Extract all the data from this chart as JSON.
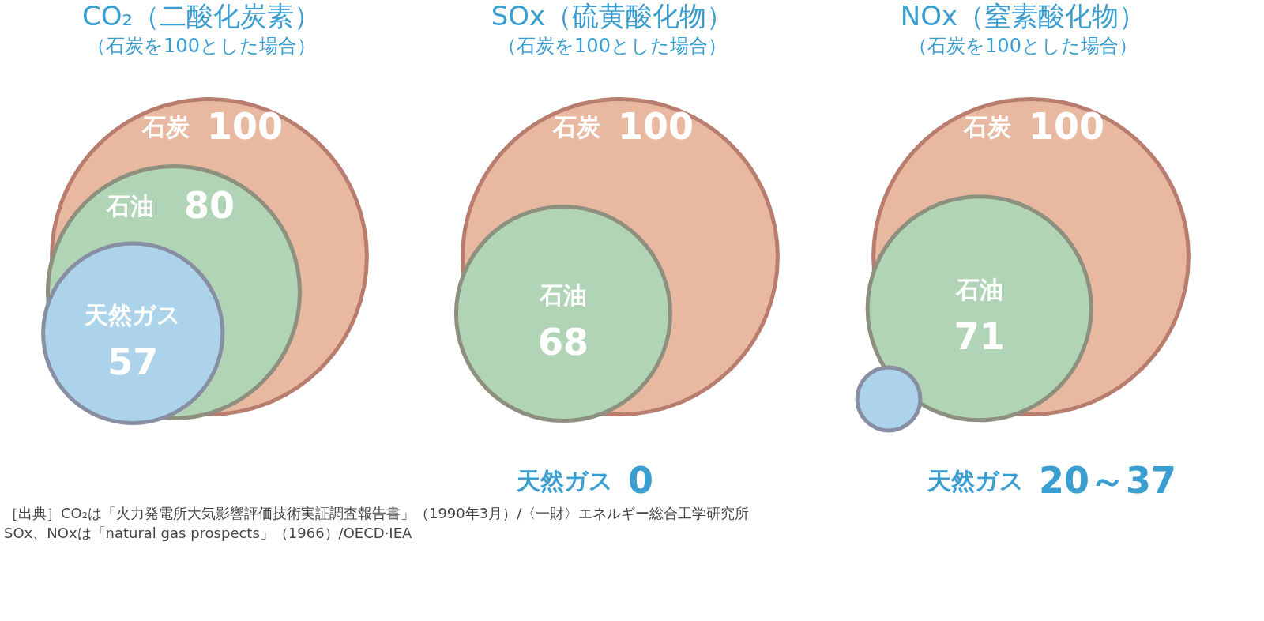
{
  "chart_data": [
    {
      "type": "other",
      "title": "CO₂（二酸化炭素）",
      "subtitle": "（石炭を100とした場合）",
      "categories": [
        "石炭",
        "石油",
        "天然ガス"
      ],
      "values": [
        100,
        80,
        57
      ],
      "colors": [
        "#e8b9a0",
        "#b2d4b6",
        "#acd3ea"
      ],
      "data_labels": true,
      "annotations": [
        "［出典］CO₂は「火力発電所大気影響評価技術実証調査報告書」（1990年3月）/〈一財〉エネルギー総合工学研究所",
        "SOx、NOxは「natural gas prospects」（1966）/OECD·IEA"
      ]
    },
    {
      "type": "other",
      "title": "SOx（硫黄酸化物）",
      "subtitle": "（石炭を100とした場合）",
      "categories": [
        "石炭",
        "石油",
        "天然ガス"
      ],
      "values": [
        100,
        68,
        0
      ],
      "colors": [
        "#e8b9a0",
        "#b2d4b6",
        "#acd3ea"
      ],
      "data_labels": true
    },
    {
      "type": "other",
      "title": "NOx（窒素酸化物）",
      "subtitle": "（石炭を100とした場合）",
      "categories": [
        "石炭",
        "石油",
        "天然ガス"
      ],
      "values": [
        100,
        71,
        20
      ],
      "value_labels": [
        "100",
        "71",
        "20～37"
      ],
      "colors": [
        "#e8b9a0",
        "#b2d4b6",
        "#acd3ea"
      ]
    }
  ]
}
